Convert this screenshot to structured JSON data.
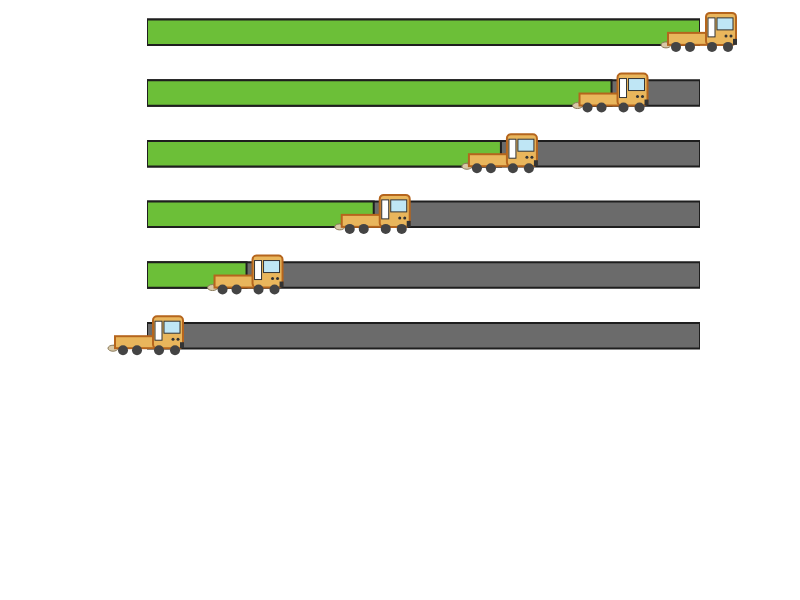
{
  "chart_data": {
    "type": "bar",
    "orientation": "horizontal",
    "categories": [
      null,
      null,
      null,
      null,
      null,
      null
    ],
    "values": [
      100,
      84,
      64,
      41,
      18,
      0
    ],
    "color": "#6cbf38",
    "xlim": [
      0,
      100
    ],
    "tick_labels": false,
    "grid": false
  }
}
